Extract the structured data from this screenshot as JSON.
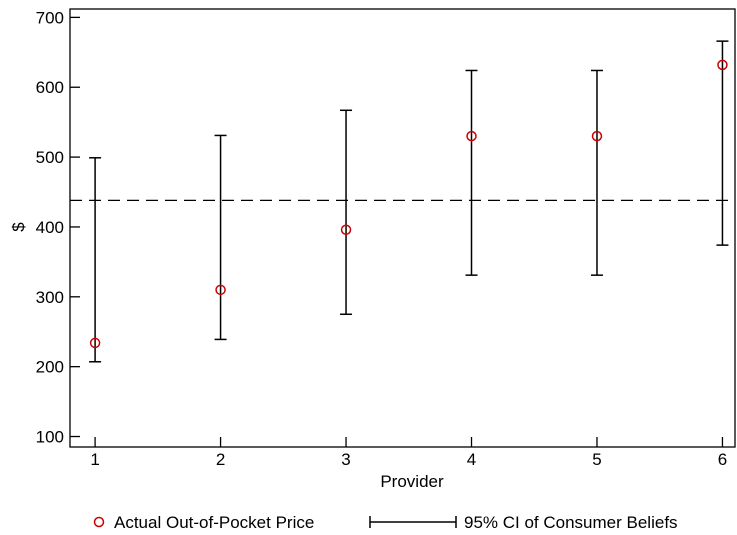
{
  "chart_data": {
    "type": "scatter",
    "title": "",
    "xlabel": "Provider",
    "ylabel": "$",
    "xlim": [
      0.8,
      6.1
    ],
    "ylim": [
      85,
      712
    ],
    "x_ticks": [
      1,
      2,
      3,
      4,
      5,
      6
    ],
    "y_ticks": [
      100,
      200,
      300,
      400,
      500,
      600,
      700
    ],
    "x": [
      1,
      2,
      3,
      4,
      5,
      6
    ],
    "reference_line": {
      "y": 438,
      "style": "dashed"
    },
    "series": [
      {
        "name": "Actual Out-of-Pocket Price",
        "kind": "points",
        "color": "#cc0000",
        "values": [
          234,
          310,
          396,
          530,
          530,
          632
        ]
      },
      {
        "name": "95% CI of Consumer Beliefs",
        "kind": "error_bars",
        "color": "#000000",
        "lower": [
          207,
          239,
          275,
          331,
          331,
          374
        ],
        "upper": [
          499,
          531,
          567,
          624,
          624,
          666
        ]
      }
    ],
    "legend_position": "bottom",
    "grid": false
  }
}
